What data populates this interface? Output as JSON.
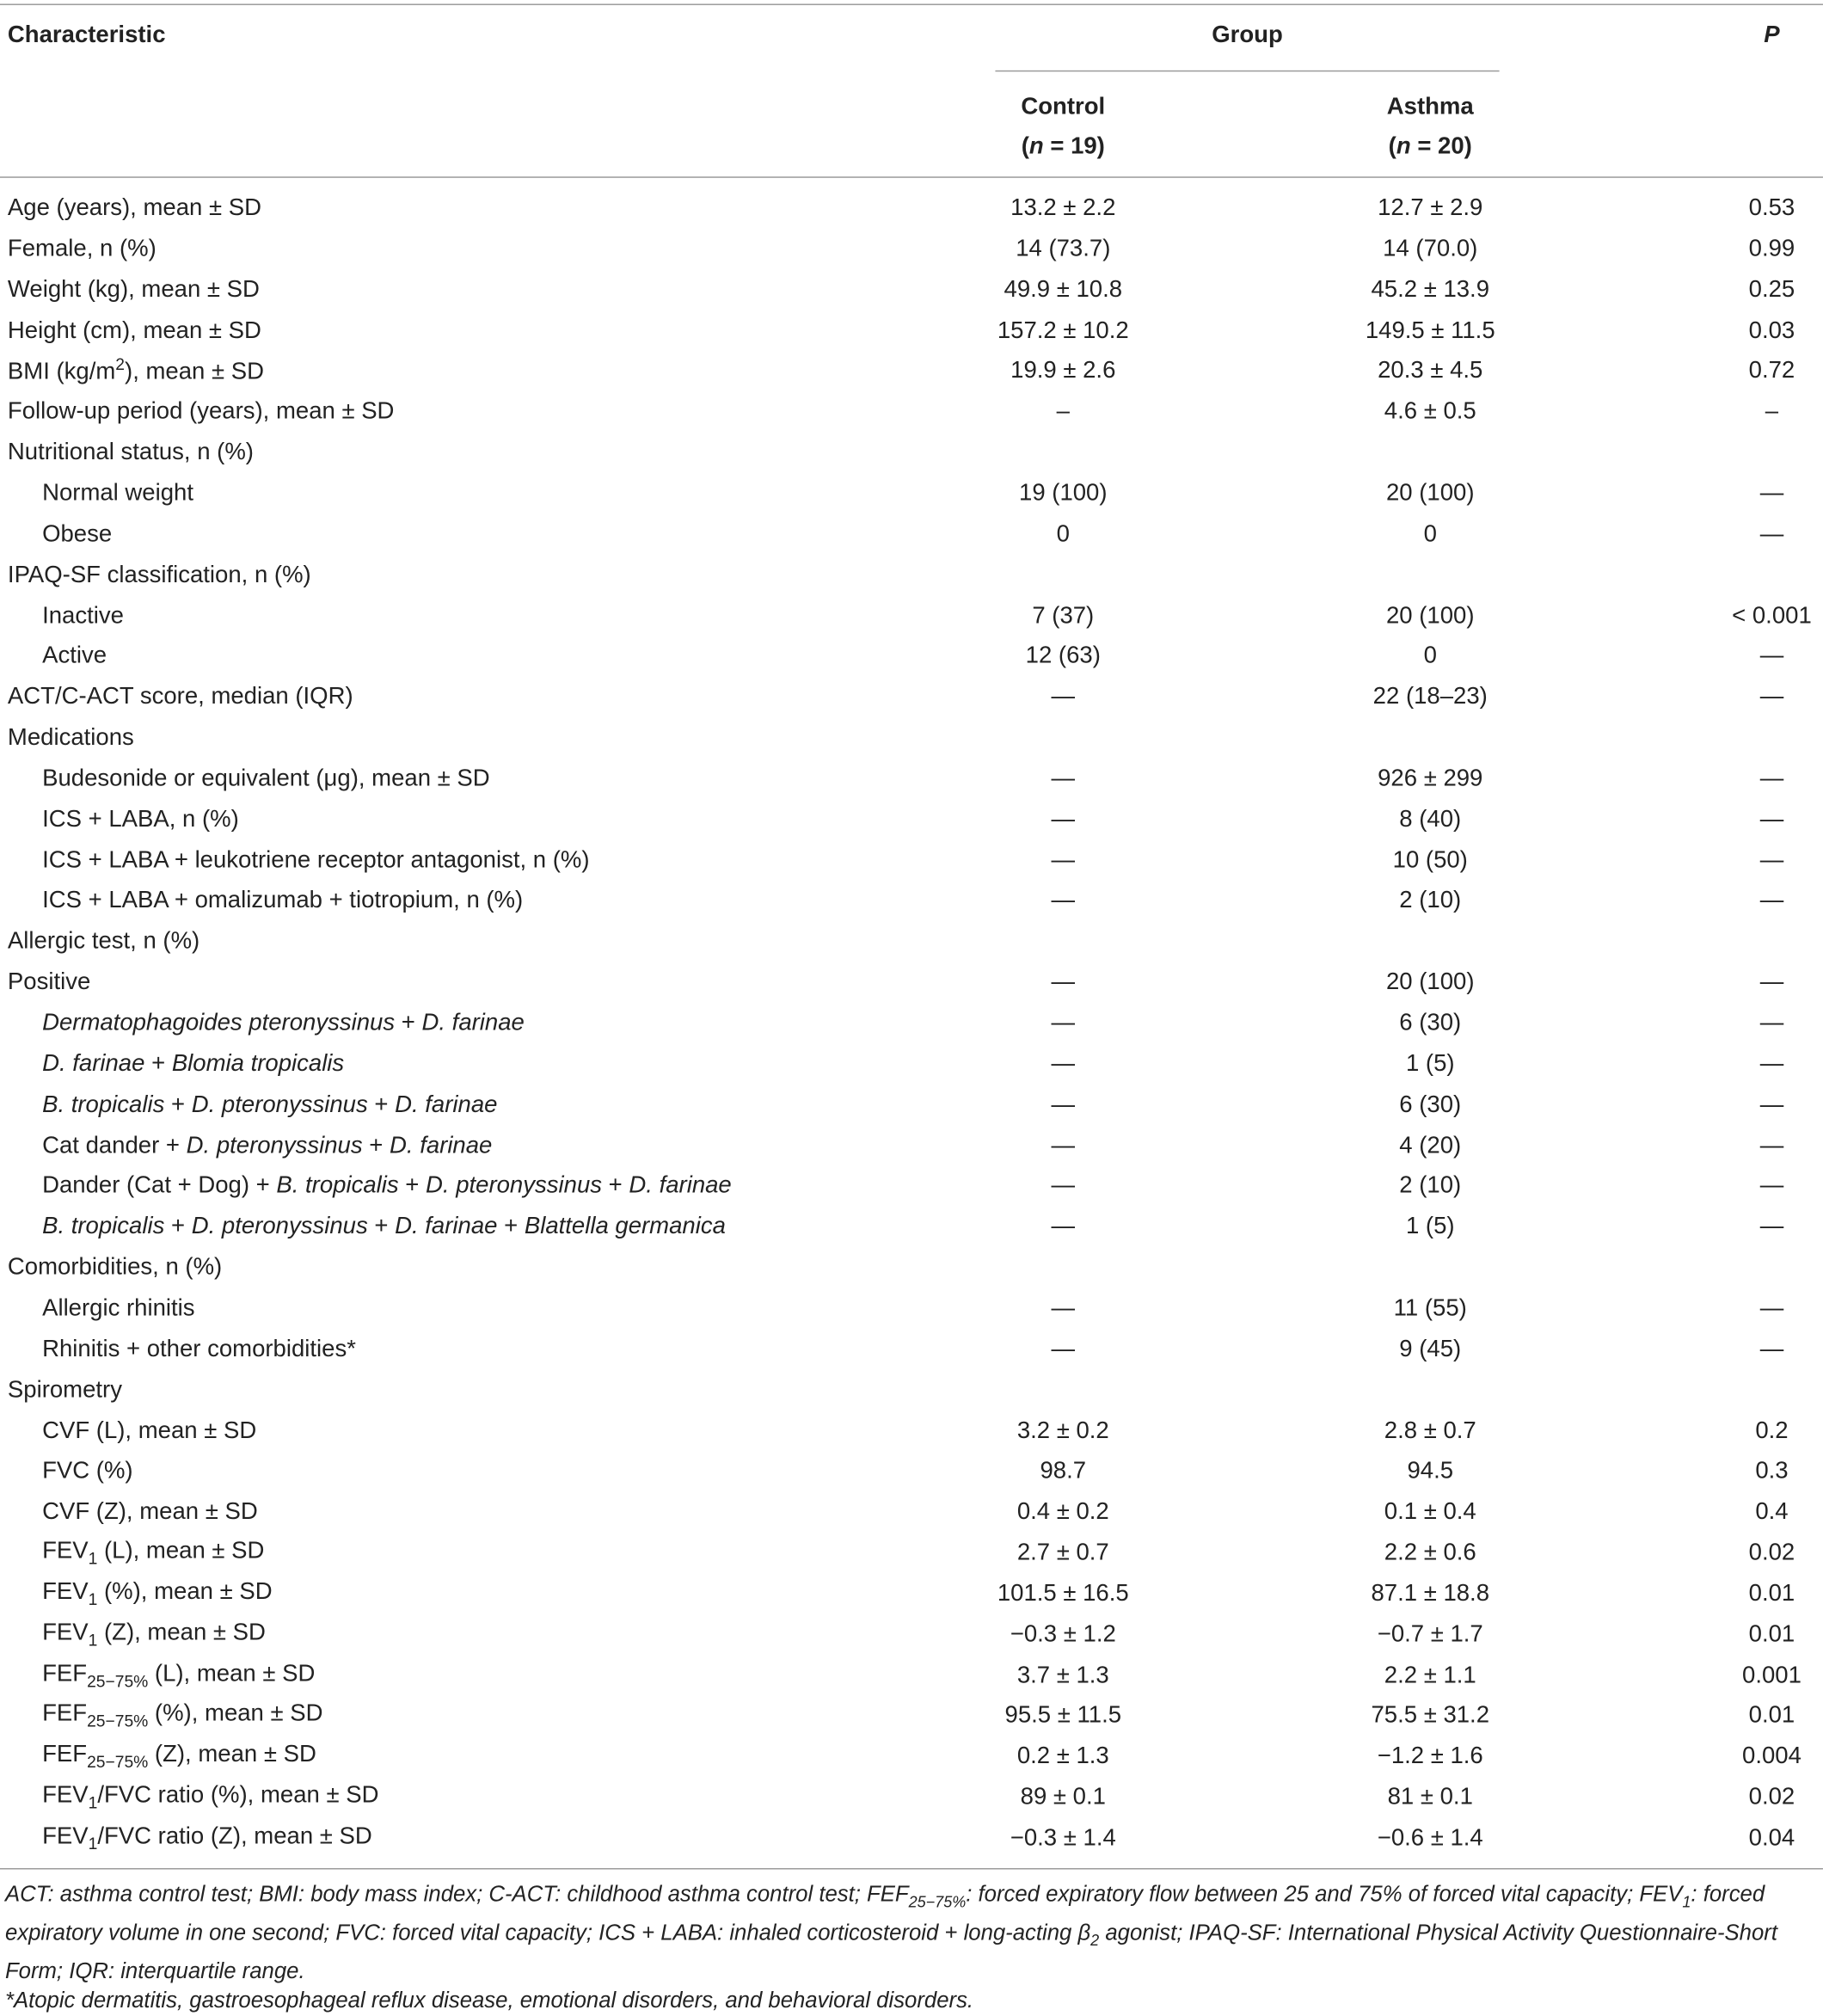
{
  "table": {
    "header": {
      "characteristic": "Characteristic",
      "group": "Group",
      "p": "P",
      "control": "Control",
      "control_n": [
        "(",
        {
          "i": "n"
        },
        " = 19)"
      ],
      "asthma": "Asthma",
      "asthma_n": [
        "(",
        {
          "i": "n"
        },
        " = 20)"
      ]
    },
    "rows": [
      {
        "level": 0,
        "label": "Age (years), mean ± SD",
        "control": "13.2 ± 2.2",
        "asthma": "12.7 ± 2.9",
        "p": "0.53"
      },
      {
        "level": 0,
        "label": "Female, n (%)",
        "control": "14 (73.7)",
        "asthma": "14 (70.0)",
        "p": "0.99"
      },
      {
        "level": 0,
        "label": "Weight (kg), mean ± SD",
        "control": "49.9 ± 10.8",
        "asthma": "45.2 ± 13.9",
        "p": "0.25"
      },
      {
        "level": 0,
        "label": "Height (cm), mean ± SD",
        "control": "157.2 ± 10.2",
        "asthma": "149.5 ± 11.5",
        "p": "0.03"
      },
      {
        "level": 0,
        "label": [
          "BMI (kg/m",
          {
            "sup": "2"
          },
          "), mean ± SD"
        ],
        "control": "19.9 ± 2.6",
        "asthma": "20.3 ± 4.5",
        "p": "0.72"
      },
      {
        "level": 0,
        "label": "Follow-up period (years), mean ± SD",
        "control": "–",
        "asthma": "4.6 ± 0.5",
        "p": "–"
      },
      {
        "level": 0,
        "label": "Nutritional status, n (%)"
      },
      {
        "level": 1,
        "label": "Normal weight",
        "control": "19 (100)",
        "asthma": "20 (100)",
        "p": "—"
      },
      {
        "level": 1,
        "label": "Obese",
        "control": "0",
        "asthma": "0",
        "p": "—"
      },
      {
        "level": 0,
        "label": "IPAQ-SF classification, n (%)"
      },
      {
        "level": 1,
        "label": "Inactive",
        "control": "7 (37)",
        "asthma": "20 (100)",
        "p": "< 0.001"
      },
      {
        "level": 1,
        "label": "Active",
        "control": "12 (63)",
        "asthma": "0",
        "p": "—"
      },
      {
        "level": 0,
        "label": "ACT/C-ACT score, median (IQR)",
        "control": "—",
        "asthma": "22 (18–23)",
        "p": "—"
      },
      {
        "level": 0,
        "label": "Medications"
      },
      {
        "level": 1,
        "label": "Budesonide or equivalent (μg), mean ± SD",
        "control": "—",
        "asthma": "926 ± 299",
        "p": "—"
      },
      {
        "level": 1,
        "label": "ICS + LABA, n (%)",
        "control": "—",
        "asthma": "8 (40)",
        "p": "—"
      },
      {
        "level": 1,
        "label": "ICS + LABA + leukotriene receptor antagonist, n (%)",
        "control": "—",
        "asthma": "10 (50)",
        "p": "—"
      },
      {
        "level": 1,
        "label": "ICS + LABA + omalizumab + tiotropium, n (%)",
        "control": "—",
        "asthma": "2 (10)",
        "p": "—"
      },
      {
        "level": 0,
        "label": "Allergic test, n (%)"
      },
      {
        "level": 0,
        "label": "Positive",
        "control": "—",
        "asthma": "20 (100)",
        "p": "—"
      },
      {
        "level": 1,
        "label": [
          {
            "i": "Dermatophagoides pteronyssinus"
          },
          " + ",
          {
            "i": "D. farinae"
          }
        ],
        "control": "—",
        "asthma": "6 (30)",
        "p": "—"
      },
      {
        "level": 1,
        "label": [
          {
            "i": "D. farinae"
          },
          " + ",
          {
            "i": "Blomia tropicalis"
          }
        ],
        "control": "—",
        "asthma": "1 (5)",
        "p": "—"
      },
      {
        "level": 1,
        "label": [
          {
            "i": "B. tropicalis"
          },
          " + ",
          {
            "i": "D. pteronyssinus"
          },
          " + ",
          {
            "i": "D. farinae"
          }
        ],
        "control": "—",
        "asthma": "6 (30)",
        "p": "—"
      },
      {
        "level": 1,
        "label": [
          "Cat dander + ",
          {
            "i": "D. pteronyssinus"
          },
          " + ",
          {
            "i": "D. farinae"
          }
        ],
        "control": "—",
        "asthma": "4 (20)",
        "p": "—"
      },
      {
        "level": 1,
        "label": [
          "Dander (Cat + Dog) + ",
          {
            "i": "B. tropicalis"
          },
          " + ",
          {
            "i": "D. pteronyssinus"
          },
          " + ",
          {
            "i": "D. farinae"
          }
        ],
        "control": "—",
        "asthma": "2 (10)",
        "p": "—"
      },
      {
        "level": 1,
        "label": [
          {
            "i": "B. tropicalis"
          },
          " + ",
          {
            "i": "D. pteronyssinus"
          },
          " + ",
          {
            "i": "D. farinae"
          },
          " + ",
          {
            "i": "Blattella germanica"
          }
        ],
        "control": "—",
        "asthma": "1 (5)",
        "p": "—"
      },
      {
        "level": 0,
        "label": "Comorbidities, n (%)"
      },
      {
        "level": 1,
        "label": "Allergic rhinitis",
        "control": "—",
        "asthma": "11 (55)",
        "p": "—"
      },
      {
        "level": 1,
        "label": "Rhinitis + other comorbidities*",
        "control": "—",
        "asthma": "9 (45)",
        "p": "—"
      },
      {
        "level": 0,
        "label": "Spirometry"
      },
      {
        "level": 1,
        "label": "CVF (L), mean ± SD",
        "control": "3.2 ± 0.2",
        "asthma": "2.8 ± 0.7",
        "p": "0.2"
      },
      {
        "level": 1,
        "label": "FVC (%)",
        "control": "98.7",
        "asthma": "94.5",
        "p": "0.3"
      },
      {
        "level": 1,
        "label": "CVF (Z), mean ± SD",
        "control": "0.4 ± 0.2",
        "asthma": "0.1 ± 0.4",
        "p": "0.4"
      },
      {
        "level": 1,
        "label": [
          "FEV",
          {
            "sub": "1"
          },
          " (L), mean ± SD"
        ],
        "control": "2.7 ± 0.7",
        "asthma": "2.2 ± 0.6",
        "p": "0.02"
      },
      {
        "level": 1,
        "label": [
          "FEV",
          {
            "sub": "1"
          },
          " (%), mean ± SD"
        ],
        "control": "101.5 ± 16.5",
        "asthma": "87.1 ± 18.8",
        "p": "0.01"
      },
      {
        "level": 1,
        "label": [
          "FEV",
          {
            "sub": "1"
          },
          " (Z), mean ± SD"
        ],
        "control": "−0.3 ± 1.2",
        "asthma": "−0.7 ± 1.7",
        "p": "0.01"
      },
      {
        "level": 1,
        "label": [
          "FEF",
          {
            "sub": "25−75%"
          },
          " (L), mean ± SD"
        ],
        "control": "3.7 ± 1.3",
        "asthma": "2.2 ± 1.1",
        "p": "0.001"
      },
      {
        "level": 1,
        "label": [
          "FEF",
          {
            "sub": "25−75%"
          },
          " (%), mean ± SD"
        ],
        "control": "95.5 ± 11.5",
        "asthma": "75.5 ± 31.2",
        "p": "0.01"
      },
      {
        "level": 1,
        "label": [
          "FEF",
          {
            "sub": "25−75%"
          },
          " (Z), mean ± SD"
        ],
        "control": "0.2 ± 1.3",
        "asthma": "−1.2 ± 1.6",
        "p": "0.004"
      },
      {
        "level": 1,
        "label": [
          "FEV",
          {
            "sub": "1"
          },
          "/FVC ratio (%), mean ± SD"
        ],
        "control": "89 ± 0.1",
        "asthma": "81 ± 0.1",
        "p": "0.02"
      },
      {
        "level": 1,
        "label": [
          "FEV",
          {
            "sub": "1"
          },
          "/FVC ratio (Z), mean ± SD"
        ],
        "control": "−0.3 ± 1.4",
        "asthma": "−0.6 ± 1.4",
        "p": "0.04"
      }
    ],
    "footnotes": [
      [
        "ACT: asthma control test; BMI: body mass index; C-ACT: childhood asthma control test; FEF",
        {
          "sub": "25−75%"
        },
        ": forced expiratory flow between 25 and 75% of forced vital capacity; FEV",
        {
          "sub": "1"
        },
        ": forced expiratory volume in one second; FVC: forced vital capacity; ICS + LABA: inhaled corticosteroid + long-acting β",
        {
          "sub": "2"
        },
        " agonist; IPAQ-SF: International Physical Activity Questionnaire-Short Form; IQR: interquartile range."
      ],
      "*Atopic dermatitis, gastroesophageal reflux disease, emotional disorders, and behavioral disorders."
    ]
  }
}
